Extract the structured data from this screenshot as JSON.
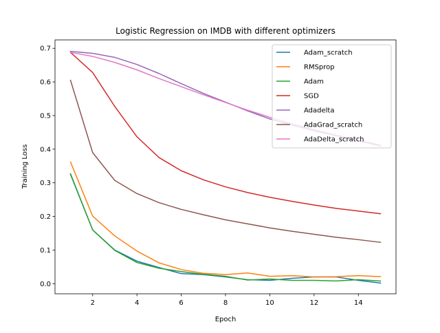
{
  "chart_data": {
    "type": "line",
    "title": "Logistic Regression on IMDB with different optimizers",
    "xlabel": "Epoch",
    "ylabel": "Training Loss",
    "xlim": [
      0.3,
      15.7
    ],
    "ylim": [
      -0.03,
      0.725
    ],
    "xticks": [
      2,
      4,
      6,
      8,
      10,
      12,
      14
    ],
    "yticks": [
      0.0,
      0.1,
      0.2,
      0.3,
      0.4,
      0.5,
      0.6,
      0.7
    ],
    "xtick_labels": [
      "2",
      "4",
      "6",
      "8",
      "10",
      "12",
      "14"
    ],
    "ytick_labels": [
      "0.0",
      "0.1",
      "0.2",
      "0.3",
      "0.4",
      "0.5",
      "0.6",
      "0.7"
    ],
    "grid": false,
    "legend_position": "top-right",
    "x": [
      1,
      2,
      3,
      4,
      5,
      6,
      7,
      8,
      9,
      10,
      11,
      12,
      13,
      14,
      15
    ],
    "series": [
      {
        "name": "Adam_scratch",
        "color": "#1f77b4",
        "values": [
          0.325,
          0.16,
          0.1,
          0.067,
          0.048,
          0.03,
          0.027,
          0.02,
          0.012,
          0.01,
          0.016,
          0.02,
          0.02,
          0.01,
          0.002
        ]
      },
      {
        "name": "RMSprop",
        "color": "#ff7f0e",
        "values": [
          0.362,
          0.201,
          0.142,
          0.097,
          0.062,
          0.042,
          0.031,
          0.027,
          0.032,
          0.022,
          0.024,
          0.02,
          0.021,
          0.024,
          0.021
        ]
      },
      {
        "name": "Adam",
        "color": "#2ca02c",
        "values": [
          0.327,
          0.16,
          0.099,
          0.063,
          0.046,
          0.036,
          0.028,
          0.022,
          0.011,
          0.014,
          0.01,
          0.01,
          0.008,
          0.012,
          0.008
        ]
      },
      {
        "name": "SGD",
        "color": "#d62728",
        "values": [
          0.688,
          0.628,
          0.527,
          0.437,
          0.375,
          0.336,
          0.309,
          0.288,
          0.271,
          0.257,
          0.245,
          0.234,
          0.224,
          0.216,
          0.208
        ]
      },
      {
        "name": "Adadelta",
        "color": "#9467bd",
        "values": [
          0.691,
          0.685,
          0.673,
          0.652,
          0.625,
          0.595,
          0.566,
          0.54,
          0.514,
          0.49,
          0.472,
          0.455,
          0.44,
          0.425,
          0.41
        ]
      },
      {
        "name": "AdaGrad_scratch",
        "color": "#8c564b",
        "values": [
          0.605,
          0.39,
          0.307,
          0.268,
          0.241,
          0.221,
          0.205,
          0.19,
          0.178,
          0.166,
          0.156,
          0.147,
          0.138,
          0.131,
          0.123
        ]
      },
      {
        "name": "AdaDelta_scratch",
        "color": "#e377c2",
        "values": [
          0.688,
          0.676,
          0.658,
          0.636,
          0.61,
          0.586,
          0.562,
          0.539,
          0.516,
          0.495,
          0.476,
          0.458,
          0.442,
          0.427,
          0.412
        ]
      }
    ]
  }
}
